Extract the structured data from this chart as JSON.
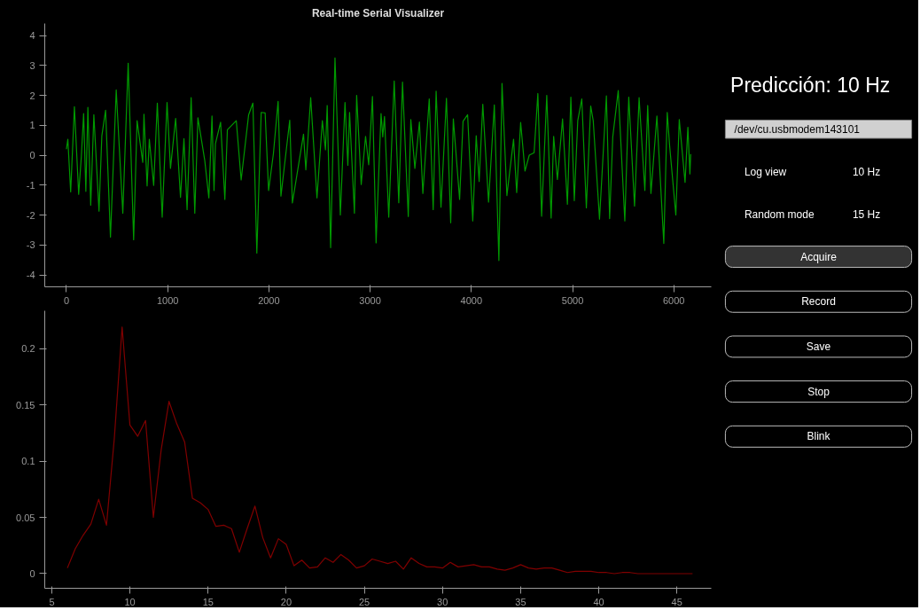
{
  "chart_data": [
    {
      "type": "line",
      "title": "Real-time Serial Visualizer",
      "grid": false,
      "xlim": [
        -214,
        6370
      ],
      "ylim": [
        -4.4,
        4.4
      ],
      "xticks": [
        0,
        1000,
        2000,
        3000,
        4000,
        5000,
        6000
      ],
      "yticks": [
        -4,
        -3,
        -2,
        -1,
        0,
        1,
        2,
        3,
        4
      ],
      "x": [
        0,
        14,
        42,
        79,
        121,
        147,
        170,
        192,
        212,
        240,
        271,
        322,
        350,
        387,
        435,
        492,
        557,
        610,
        664,
        698,
        754,
        766,
        797,
        819,
        862,
        898,
        946,
        994,
        1028,
        1079,
        1127,
        1161,
        1192,
        1232,
        1268,
        1299,
        1367,
        1407,
        1438,
        1458,
        1472,
        1523,
        1565,
        1590,
        1678,
        1726,
        1800,
        1842,
        1881,
        1924,
        1963,
        1997,
        2045,
        2091,
        2119,
        2206,
        2232,
        2342,
        2365,
        2413,
        2475,
        2528,
        2559,
        2576,
        2610,
        2653,
        2706,
        2752,
        2780,
        2797,
        2845,
        2867,
        2912,
        2955,
        2986,
        3023,
        3059,
        3108,
        3125,
        3142,
        3184,
        3238,
        3283,
        3320,
        3377,
        3402,
        3442,
        3487,
        3521,
        3584,
        3623,
        3652,
        3700,
        3754,
        3796,
        3822,
        3884,
        3918,
        3963,
        4014,
        4048,
        4077,
        4113,
        4170,
        4227,
        4272,
        4303,
        4351,
        4417,
        4448,
        4487,
        4530,
        4572,
        4620,
        4657,
        4694,
        4745,
        4788,
        4813,
        4850,
        4901,
        4949,
        4983,
        5017,
        5051,
        5091,
        5136,
        5179,
        5204,
        5266,
        5334,
        5366,
        5397,
        5451,
        5516,
        5555,
        5612,
        5657,
        5714,
        5742,
        5774,
        5833,
        5901,
        5935,
        5958,
        6020,
        6054,
        6111,
        6139,
        6159,
        6167
      ],
      "series": [
        {
          "color": "#009900",
          "values": [
            0.2,
            0.53,
            -1.23,
            1.62,
            -1.31,
            -0.06,
            1.39,
            -1.21,
            1.6,
            -1.67,
            1.35,
            -1.87,
            0.65,
            1.5,
            -2.74,
            2.18,
            -1.94,
            3.07,
            -2.83,
            1.15,
            -0.24,
            1.37,
            -1.03,
            0.53,
            -1.01,
            1.74,
            -2.07,
            1.76,
            -0.44,
            1.23,
            -1.41,
            0.55,
            -1.82,
            1.92,
            -1.94,
            1.25,
            -0.19,
            -1.43,
            1.31,
            -1.18,
            0.38,
            1.1,
            -1.48,
            0.85,
            1.15,
            -0.83,
            1.35,
            1.74,
            -3.27,
            1.43,
            1.41,
            -1.18,
            0.06,
            1.8,
            -1.37,
            1.17,
            -1.6,
            0.7,
            -0.49,
            1.92,
            -1.43,
            1.15,
            0.18,
            1.66,
            -3.09,
            3.25,
            -2.0,
            1.76,
            -0.34,
            1.43,
            -1.94,
            2.0,
            -0.98,
            0.63,
            -0.32,
            1.96,
            -2.93,
            1.39,
            0.61,
            1.29,
            -2.07,
            2.48,
            -1.59,
            2.44,
            -2.05,
            1.19,
            -0.44,
            1.11,
            -1.28,
            1.88,
            -1.82,
            2.14,
            -1.74,
            1.9,
            -2.26,
            1.21,
            -1.48,
            1.13,
            1.35,
            -2.2,
            0.65,
            -0.88,
            1.7,
            -1.57,
            1.68,
            -3.52,
            2.4,
            -1.35,
            0.53,
            -1.25,
            1.09,
            -0.53,
            0.0,
            0.08,
            2.06,
            -2.04,
            2.0,
            -2.1,
            0.63,
            -0.81,
            1.21,
            -1.64,
            1.94,
            -1.52,
            1.15,
            1.88,
            -1.76,
            1.64,
            1.15,
            -2.14,
            1.98,
            -2.12,
            0.61,
            2.16,
            -2.2,
            1.94,
            -1.7,
            1.92,
            -1.18,
            1.66,
            -1.28,
            1.31,
            -2.95,
            1.43,
            0.34,
            -2.0,
            1.19,
            -0.91,
            0.93,
            -0.63,
            0.04
          ]
        }
      ]
    },
    {
      "type": "line",
      "grid": false,
      "xlim": [
        4.55,
        47.2
      ],
      "ylim": [
        -0.013,
        0.2335
      ],
      "xticks": [
        5,
        10,
        15,
        20,
        25,
        30,
        35,
        40,
        45
      ],
      "yticks": [
        0,
        0.05,
        0.1,
        0.15,
        0.2
      ],
      "x": [
        6,
        6.5,
        7,
        7.5,
        8,
        8.5,
        9,
        9.5,
        10,
        10.5,
        11,
        11.5,
        12,
        12.5,
        13,
        13.5,
        14,
        14.5,
        15,
        15.5,
        16,
        16.5,
        17,
        17.5,
        18,
        18.5,
        19,
        19.5,
        20,
        20.5,
        21,
        21.5,
        22,
        22.5,
        23,
        23.5,
        24,
        24.5,
        25,
        25.5,
        26,
        26.5,
        27,
        27.5,
        28,
        28.5,
        29,
        29.5,
        30,
        30.5,
        31,
        31.5,
        32,
        32.5,
        33,
        33.5,
        34,
        34.5,
        35,
        35.5,
        36,
        36.5,
        37,
        37.5,
        38,
        38.5,
        39,
        39.5,
        40,
        40.5,
        41,
        41.5,
        42,
        42.5,
        43,
        43.5,
        44,
        44.5,
        45,
        45.5,
        46
      ],
      "series": [
        {
          "color": "#800000",
          "values": [
            0.005,
            0.022,
            0.034,
            0.044,
            0.066,
            0.043,
            0.12,
            0.219,
            0.132,
            0.122,
            0.136,
            0.05,
            0.11,
            0.153,
            0.133,
            0.117,
            0.067,
            0.063,
            0.057,
            0.042,
            0.043,
            0.04,
            0.019,
            0.04,
            0.06,
            0.032,
            0.014,
            0.031,
            0.026,
            0.007,
            0.012,
            0.005,
            0.006,
            0.014,
            0.01,
            0.017,
            0.012,
            0.005,
            0.007,
            0.013,
            0.011,
            0.009,
            0.011,
            0.004,
            0.014,
            0.009,
            0.006,
            0.006,
            0.005,
            0.01,
            0.006,
            0.007,
            0.008,
            0.006,
            0.006,
            0.004,
            0.003,
            0.005,
            0.008,
            0.005,
            0.004,
            0.005,
            0.005,
            0.003,
            0.001,
            0.002,
            0.002,
            0.002,
            0.001,
            0.001,
            0.0,
            0.001,
            0.001,
            0.0,
            0.0,
            0.0,
            0.0,
            0.0,
            0.0,
            0.0,
            0.0
          ]
        }
      ]
    },
    {
      "type": "other",
      "title": "Predicción: 10 Hz",
      "annotations": [
        "/dev/cu.usbmodem143101",
        "Log view",
        "10 Hz",
        "Random mode",
        "15 Hz",
        "Acquire",
        "Record",
        "Save",
        "Stop",
        "Blink"
      ]
    }
  ]
}
